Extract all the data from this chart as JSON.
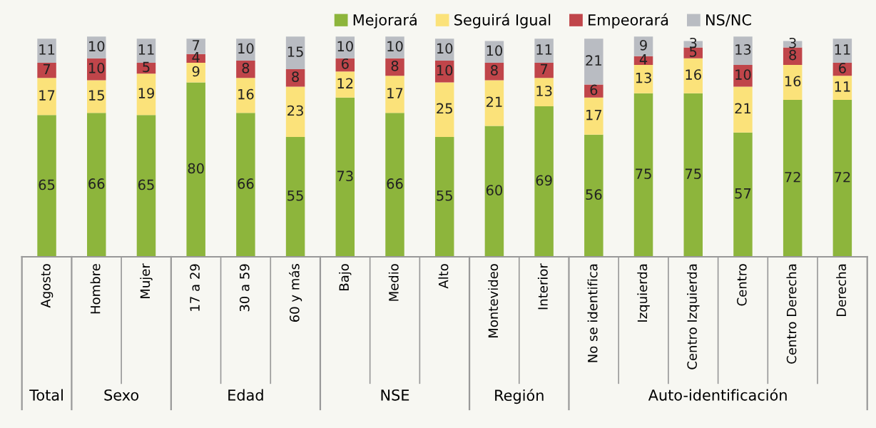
{
  "chart_data": {
    "type": "bar",
    "stacked": true,
    "data_labels": true,
    "legend": "top",
    "categories": [
      "Agosto",
      "Hombre",
      "Mujer",
      "17 a 29",
      "30 a 59",
      "60 y más",
      "Bajo",
      "Medio",
      "Alto",
      "Montevideo",
      "Interior",
      "No se identifica",
      "Izquierda",
      "Centro Izquierda",
      "Centro",
      "Centro Derecha",
      "Derecha"
    ],
    "series": [
      {
        "name": "Mejorará",
        "color": "#8db53c",
        "values": [
          65,
          66,
          65,
          80,
          66,
          55,
          73,
          66,
          55,
          60,
          69,
          56,
          75,
          75,
          57,
          72,
          72
        ]
      },
      {
        "name": "Seguirá Igual",
        "color": "#fbe27a",
        "values": [
          17,
          15,
          19,
          9,
          16,
          23,
          12,
          17,
          25,
          21,
          13,
          17,
          13,
          16,
          21,
          16,
          11
        ]
      },
      {
        "name": "Empeorará",
        "color": "#c0454a",
        "values": [
          7,
          10,
          5,
          4,
          8,
          8,
          6,
          8,
          10,
          8,
          7,
          6,
          4,
          5,
          10,
          8,
          6
        ]
      },
      {
        "name": "NS/NC",
        "color": "#b9bcc2",
        "values": [
          11,
          10,
          11,
          7,
          10,
          15,
          10,
          10,
          10,
          10,
          11,
          21,
          9,
          3,
          13,
          3,
          11
        ]
      }
    ],
    "annotations": [
      "Total",
      "Sexo",
      "Edad",
      "NSE",
      "Región",
      "Auto-identificación"
    ]
  }
}
